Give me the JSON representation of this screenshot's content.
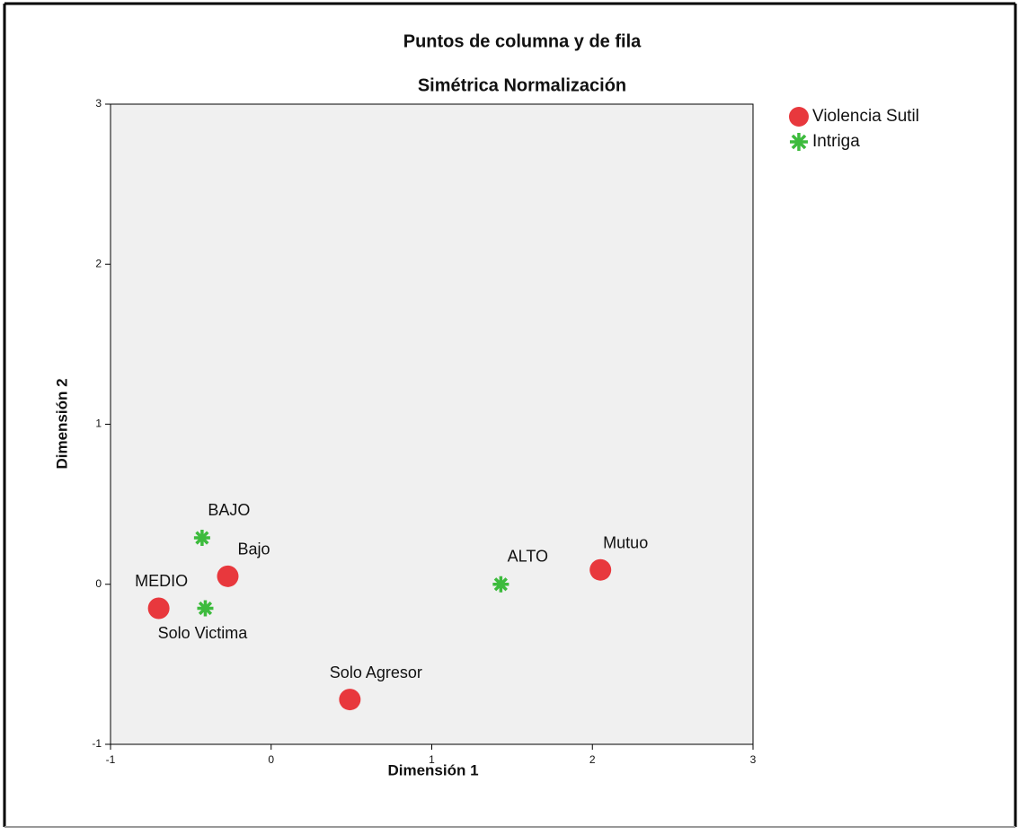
{
  "chart_data": {
    "type": "scatter",
    "title": "Puntos de columna y de fila",
    "subtitle": "Simétrica Normalización",
    "x_label": "Dimensión 1",
    "y_label": "Dimensión 2",
    "xlim": [
      -1,
      3
    ],
    "xticks": [
      -1,
      0,
      1,
      2,
      3
    ],
    "ylim": [
      -1,
      3
    ],
    "yticks": [
      -1,
      0,
      1,
      2,
      3
    ],
    "legend": "right",
    "series": [
      {
        "name": "Violencia Sutil",
        "color": "#e8383d",
        "marker": "circle",
        "labels": [
          "Mutuo",
          "Bajo",
          "MEDIO",
          "Solo Agresor"
        ],
        "x": [
          2.05,
          -0.27,
          -0.7,
          0.49
        ],
        "y": [
          0.09,
          0.05,
          -0.15,
          -0.72
        ]
      },
      {
        "name": "Intriga",
        "color": "#3dbb3d",
        "marker": "star",
        "labels": [
          "BAJO",
          "ALTO",
          "Solo Victima"
        ],
        "x": [
          -0.43,
          1.43,
          -0.41
        ],
        "y": [
          0.29,
          0.0,
          -0.15
        ]
      }
    ]
  }
}
